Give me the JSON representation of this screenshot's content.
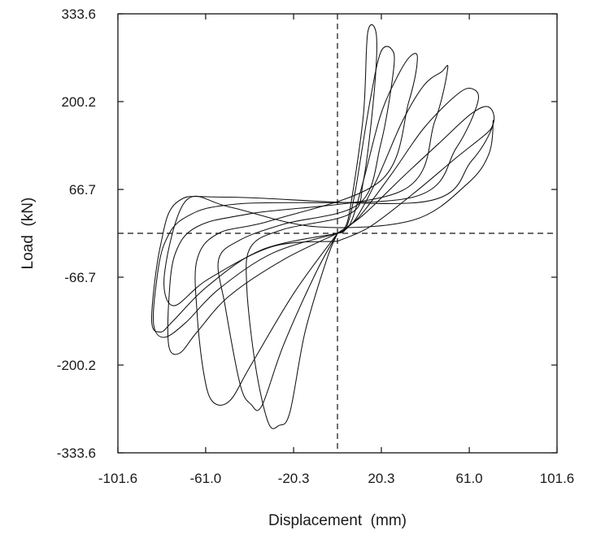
{
  "chart_data": {
    "type": "line",
    "title": "",
    "xlabel": "Displacement  (mm)",
    "ylabel": "Load  (kN)",
    "xlim": [
      -101.6,
      101.6
    ],
    "ylim": [
      -333.6,
      333.6
    ],
    "x_tick_labels": [
      "-101.6",
      "-61.0",
      "-20.3",
      "20.3",
      "61.0",
      "101.6"
    ],
    "y_tick_labels": [
      "333.6",
      "200.2",
      "66.7",
      "-66.7",
      "-200.2",
      "-333.6"
    ],
    "zero_lines": "dashed",
    "grid": false,
    "legend": "none",
    "series": [
      {
        "points": [
          [
            0,
            0
          ],
          [
            3,
            6
          ],
          [
            6,
            40
          ],
          [
            12,
            180
          ],
          [
            14,
            305
          ],
          [
            18,
            302
          ],
          [
            17,
            215
          ],
          [
            12,
            80
          ],
          [
            6,
            30
          ],
          [
            -25,
            6
          ],
          [
            -40,
            -20
          ],
          [
            -42,
            -80
          ],
          [
            -38,
            -200
          ],
          [
            -32,
            -288
          ],
          [
            -27,
            -292
          ],
          [
            -22,
            -272
          ],
          [
            -15,
            -150
          ],
          [
            -5,
            -40
          ],
          [
            0,
            0
          ]
        ]
      },
      {
        "points": [
          [
            0,
            0
          ],
          [
            4,
            8
          ],
          [
            8,
            60
          ],
          [
            15,
            200
          ],
          [
            20,
            275
          ],
          [
            25,
            280
          ],
          [
            26,
            250
          ],
          [
            20,
            135
          ],
          [
            10,
            45
          ],
          [
            -25,
            14
          ],
          [
            -45,
            -10
          ],
          [
            -55,
            -40
          ],
          [
            -52,
            -110
          ],
          [
            -45,
            -230
          ],
          [
            -40,
            -260
          ],
          [
            -35,
            -262
          ],
          [
            -25,
            -170
          ],
          [
            -10,
            -60
          ],
          [
            0,
            0
          ]
        ]
      },
      {
        "points": [
          [
            0,
            0
          ],
          [
            6,
            15
          ],
          [
            12,
            80
          ],
          [
            20,
            180
          ],
          [
            28,
            240
          ],
          [
            34,
            270
          ],
          [
            37,
            265
          ],
          [
            33,
            200
          ],
          [
            20,
            80
          ],
          [
            -30,
            20
          ],
          [
            -55,
            0
          ],
          [
            -65,
            -40
          ],
          [
            -65,
            -120
          ],
          [
            -62,
            -210
          ],
          [
            -58,
            -255
          ],
          [
            -50,
            -255
          ],
          [
            -40,
            -200
          ],
          [
            -20,
            -90
          ],
          [
            0,
            0
          ]
        ]
      },
      {
        "points": [
          [
            0,
            0
          ],
          [
            8,
            20
          ],
          [
            18,
            80
          ],
          [
            30,
            170
          ],
          [
            40,
            225
          ],
          [
            48,
            245
          ],
          [
            51,
            250
          ],
          [
            45,
            170
          ],
          [
            30,
            65
          ],
          [
            -40,
            30
          ],
          [
            -65,
            10
          ],
          [
            -75,
            -30
          ],
          [
            -78,
            -100
          ],
          [
            -78,
            -172
          ],
          [
            -73,
            -182
          ],
          [
            -65,
            -150
          ],
          [
            -50,
            -95
          ],
          [
            -25,
            -40
          ],
          [
            0,
            0
          ]
        ]
      },
      {
        "points": [
          [
            0,
            0
          ],
          [
            10,
            25
          ],
          [
            25,
            90
          ],
          [
            40,
            160
          ],
          [
            55,
            210
          ],
          [
            62,
            220
          ],
          [
            65,
            200
          ],
          [
            55,
            130
          ],
          [
            35,
            55
          ],
          [
            -45,
            45
          ],
          [
            -70,
            25
          ],
          [
            -80,
            -15
          ],
          [
            -84,
            -80
          ],
          [
            -85,
            -140
          ],
          [
            -80,
            -158
          ],
          [
            -70,
            -135
          ],
          [
            -55,
            -85
          ],
          [
            -30,
            -30
          ],
          [
            0,
            0
          ]
        ]
      },
      {
        "points": [
          [
            0,
            0
          ],
          [
            12,
            28
          ],
          [
            30,
            85
          ],
          [
            48,
            140
          ],
          [
            62,
            182
          ],
          [
            70,
            192
          ],
          [
            72,
            165
          ],
          [
            62,
            110
          ],
          [
            40,
            48
          ],
          [
            -50,
            55
          ],
          [
            -74,
            48
          ],
          [
            -82,
            -20
          ],
          [
            -86,
            -130
          ],
          [
            -82,
            -150
          ],
          [
            -76,
            -133
          ],
          [
            -60,
            -80
          ],
          [
            -35,
            -25
          ],
          [
            0,
            0
          ]
        ]
      },
      {
        "points": [
          [
            0,
            -12
          ],
          [
            15,
            10
          ],
          [
            35,
            60
          ],
          [
            55,
            115
          ],
          [
            70,
            155
          ],
          [
            72,
            170
          ],
          [
            70,
            120
          ],
          [
            60,
            75
          ],
          [
            35,
            20
          ],
          [
            -10,
            10
          ],
          [
            -50,
            40
          ],
          [
            -70,
            50
          ],
          [
            -80,
            -60
          ],
          [
            -76,
            -110
          ],
          [
            -60,
            -70
          ],
          [
            -30,
            -20
          ],
          [
            0,
            -12
          ]
        ]
      }
    ]
  }
}
